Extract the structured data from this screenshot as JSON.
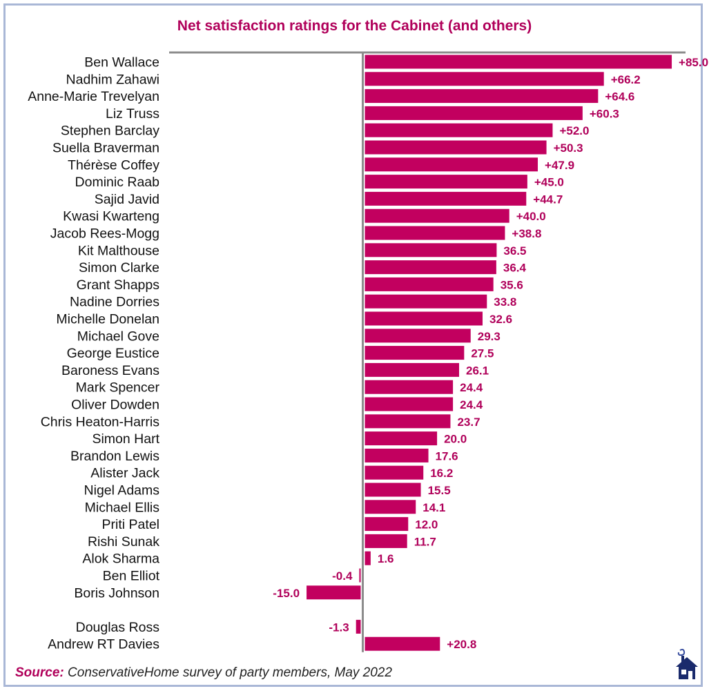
{
  "colors": {
    "bar": "#c2005f",
    "label": "#b0005a",
    "axis": "#8c8c8c",
    "text": "#111111"
  },
  "chart_data": {
    "type": "bar",
    "orientation": "horizontal",
    "title": "Net satisfaction ratings for the Cabinet (and others)",
    "xlabel": "",
    "ylabel": "",
    "xlim": [
      -20,
      90
    ],
    "grid": false,
    "categories": [
      "Ben Wallace",
      "Nadhim Zahawi",
      "Anne-Marie Trevelyan",
      "Liz Truss",
      "Stephen Barclay",
      "Suella Braverman",
      "Thérèse Coffey",
      "Dominic Raab",
      "Sajid Javid",
      "Kwasi Kwarteng",
      "Jacob Rees-Mogg",
      "Kit Malthouse",
      "Simon Clarke",
      "Grant Shapps",
      "Nadine Dorries",
      "Michelle Donelan",
      "Michael Gove",
      "George Eustice",
      "Baroness Evans",
      "Mark Spencer",
      "Oliver Dowden",
      "Chris Heaton-Harris",
      "Simon Hart",
      "Brandon Lewis",
      "Alister Jack",
      "Nigel Adams",
      "Michael Ellis",
      "Priti Patel",
      "Rishi Sunak",
      "Alok Sharma",
      "Ben Elliot",
      "Boris Johnson",
      "",
      "Douglas Ross",
      "Andrew RT Davies"
    ],
    "values": [
      85.0,
      66.2,
      64.6,
      60.3,
      52.0,
      50.3,
      47.9,
      45.0,
      44.7,
      40.0,
      38.8,
      36.5,
      36.4,
      35.6,
      33.8,
      32.6,
      29.3,
      27.5,
      26.1,
      24.4,
      24.4,
      23.7,
      20.0,
      17.6,
      16.2,
      15.5,
      14.1,
      12.0,
      11.7,
      1.6,
      -0.4,
      -15.0,
      null,
      -1.3,
      20.8
    ],
    "data_labels": [
      "+85.0",
      "+66.2",
      "+64.6",
      "+60.3",
      "+52.0",
      "+50.3",
      "+47.9",
      "+45.0",
      "+44.7",
      "+40.0",
      "+38.8",
      "36.5",
      "36.4",
      "35.6",
      "33.8",
      "32.6",
      "29.3",
      "27.5",
      "26.1",
      "24.4",
      "24.4",
      "23.7",
      "20.0",
      "17.6",
      "16.2",
      "15.5",
      "14.1",
      "12.0",
      "11.7",
      "1.6",
      "-0.4",
      "-15.0",
      "",
      "-1.3",
      "+20.8"
    ]
  },
  "footer": {
    "source_label": "Source:",
    "source_text": "ConservativeHome survey of party members, May 2022"
  },
  "logo": {
    "icon": "house-logo-icon"
  }
}
